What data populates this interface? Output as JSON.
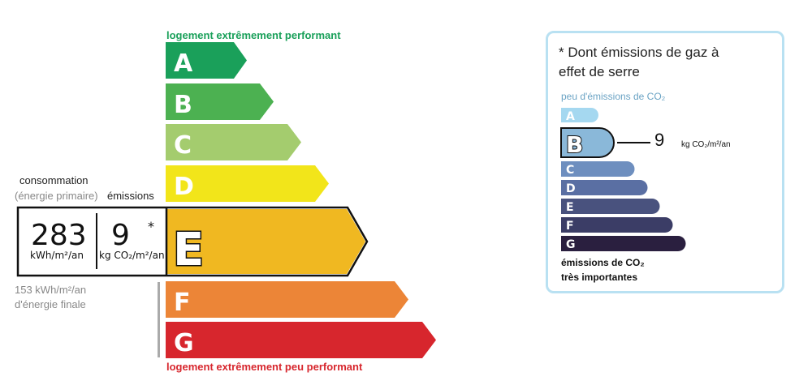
{
  "energy_label": {
    "top_label": "logement extrêmement performant",
    "bottom_label": "logement extrêmement peu performant",
    "current_class": "E",
    "classes": [
      {
        "letter": "A",
        "color": "#1aa05a"
      },
      {
        "letter": "B",
        "color": "#4cb151"
      },
      {
        "letter": "C",
        "color": "#a4cc6e"
      },
      {
        "letter": "D",
        "color": "#f2e51a"
      },
      {
        "letter": "E",
        "color": "#f0b821"
      },
      {
        "letter": "F",
        "color": "#ec8537"
      },
      {
        "letter": "G",
        "color": "#d7262d"
      }
    ]
  },
  "consumption": {
    "title": "consommation",
    "subtitle": "(énergie primaire)",
    "emissions_title": "émissions",
    "value": "283",
    "unit": "kWh/m²/an",
    "emissions_value": "9",
    "emissions_unit": "kg CO₂/m²/an",
    "asterisk": "*",
    "final_energy_line1": "153 kWh/m²/an",
    "final_energy_line2": "d'énergie finale"
  },
  "co2_label": {
    "title_line1": "* Dont émissions de gaz à",
    "title_line2": "effet de serre",
    "top_label": "peu d'émissions de CO₂",
    "bottom_line1": "émissions de CO₂",
    "bottom_line2": "très importantes",
    "current_class": "B",
    "value": "9",
    "unit": "kg CO₂/m²/an",
    "classes": [
      {
        "letter": "A",
        "color": "#a5d8f0"
      },
      {
        "letter": "B",
        "color": "#8ab8d9"
      },
      {
        "letter": "C",
        "color": "#6e8fbf"
      },
      {
        "letter": "D",
        "color": "#5a6fa3"
      },
      {
        "letter": "E",
        "color": "#49527e"
      },
      {
        "letter": "F",
        "color": "#3b3d66"
      },
      {
        "letter": "G",
        "color": "#2a1f3f"
      }
    ]
  }
}
